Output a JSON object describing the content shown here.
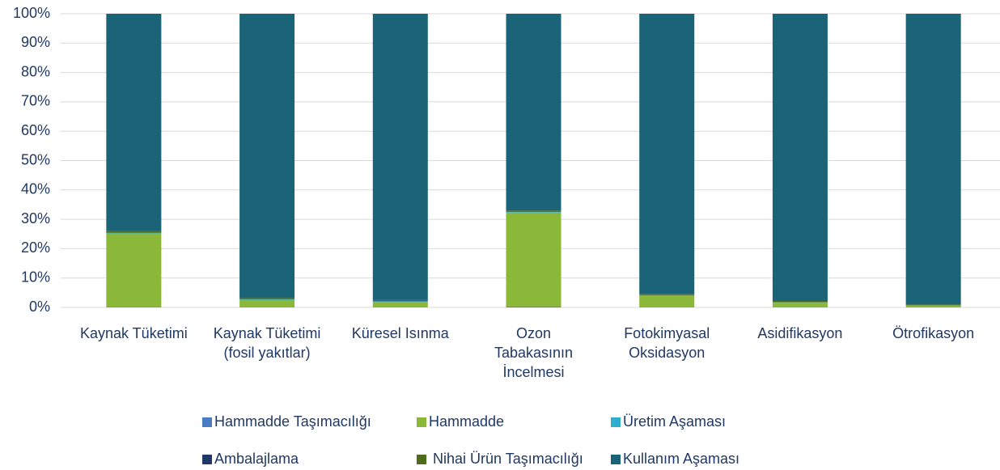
{
  "chart_data": {
    "type": "stacked_bar_100",
    "categories": [
      "Kaynak Tüketimi",
      "Kaynak Tüketimi\n(fosil yakıtlar)",
      "Küresel Isınma",
      "Ozon\nTabakasının\nİncelmesi",
      "Fotokimyasal\nOksidasyon",
      "Asidifikasyon",
      "Ötrofikasyon"
    ],
    "series": [
      {
        "name": "Hammadde Taşımacılığı",
        "color": "#4a7cc4",
        "values": [
          0.2,
          0.1,
          0.1,
          0.3,
          0.1,
          0.1,
          0.1
        ]
      },
      {
        "name": "Hammadde",
        "color": "#8cb83a",
        "values": [
          25.0,
          2.5,
          1.8,
          32.0,
          3.8,
          1.5,
          0.5
        ]
      },
      {
        "name": "Üretim Aşaması",
        "color": "#2eb0cc",
        "values": [
          0.2,
          0.2,
          0.2,
          0.2,
          0.2,
          0.2,
          0.1
        ]
      },
      {
        "name": "Ambalajlama",
        "color": "#1f3864",
        "values": [
          0.1,
          0.1,
          0.1,
          0.1,
          0.1,
          0.1,
          0.1
        ]
      },
      {
        "name": " Nihai Ürün Taşımacılığı",
        "color": "#4f6b1c",
        "values": [
          0.5,
          0.3,
          0.3,
          0.4,
          0.4,
          0.3,
          0.2
        ]
      },
      {
        "name": "Kullanım Aşaması",
        "color": "#1b6478",
        "values": [
          74.0,
          96.8,
          97.5,
          67.0,
          95.4,
          97.8,
          99.0
        ]
      }
    ],
    "ylim": [
      0,
      100
    ],
    "yticks": [
      {
        "value": 0,
        "label": "0%"
      },
      {
        "value": 10,
        "label": "10%"
      },
      {
        "value": 20,
        "label": "20%"
      },
      {
        "value": 30,
        "label": "30%"
      },
      {
        "value": 40,
        "label": "40%"
      },
      {
        "value": 50,
        "label": "50%"
      },
      {
        "value": 60,
        "label": "60%"
      },
      {
        "value": 70,
        "label": "70%"
      },
      {
        "value": 80,
        "label": "80%"
      },
      {
        "value": 90,
        "label": "90%"
      },
      {
        "value": 100,
        "label": "100%"
      }
    ],
    "grid": true,
    "legend": "bottom"
  }
}
